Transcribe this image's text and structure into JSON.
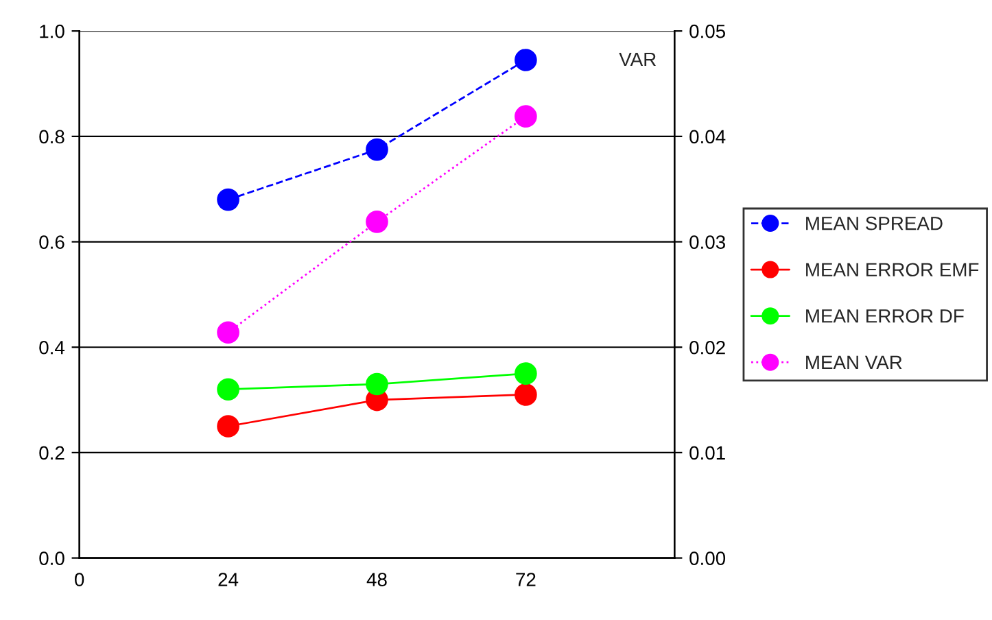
{
  "chart_data": {
    "type": "line",
    "x": [
      24,
      48,
      72
    ],
    "xlim": [
      0,
      96
    ],
    "xticks": [
      0,
      24,
      48,
      72
    ],
    "ylim": [
      0,
      1
    ],
    "yticks": [
      {
        "value": 0,
        "label": "0.0"
      },
      {
        "value": 0.2,
        "label": "0.2"
      },
      {
        "value": 0.4,
        "label": "0.4"
      },
      {
        "value": 0.6,
        "label": "0.6"
      },
      {
        "value": 0.8,
        "label": "0.8"
      },
      {
        "value": 1,
        "label": "1.0"
      }
    ],
    "y2lim": [
      0,
      0.05
    ],
    "y2ticks": [
      {
        "value": 0,
        "label": "0.00"
      },
      {
        "value": 0.01,
        "label": "0.01"
      },
      {
        "value": 0.02,
        "label": "0.02"
      },
      {
        "value": 0.03,
        "label": "0.03"
      },
      {
        "value": 0.04,
        "label": "0.04"
      },
      {
        "value": 0.05,
        "label": "0.05"
      }
    ],
    "y2label": "VAR",
    "grid": "y",
    "legend": "right",
    "marker": "circle",
    "series": [
      {
        "name": "MEAN SPREAD",
        "color": "#0000ff",
        "values": [
          0.68,
          0.775,
          0.945
        ],
        "line_style": "dashed"
      },
      {
        "name": "MEAN ERROR EMF",
        "color": "#ff0000",
        "values": [
          0.25,
          0.3,
          0.31
        ],
        "line_style": "solid"
      },
      {
        "name": "MEAN ERROR DF",
        "color": "#00ff00",
        "values": [
          0.32,
          0.33,
          0.35
        ],
        "line_style": "solid"
      },
      {
        "name": "MEAN VAR",
        "color": "#ff00ff",
        "values": [
          0.0214,
          0.0319,
          0.0419
        ],
        "line_style": "dotted",
        "axis": "y2"
      }
    ]
  }
}
